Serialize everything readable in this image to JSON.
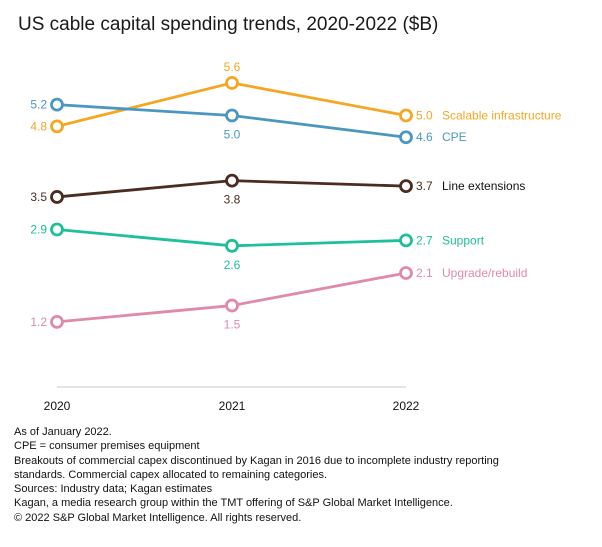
{
  "chart_data": {
    "type": "line",
    "title": "US cable capital spending trends, 2020-2022 ($B)",
    "xlabel": "",
    "ylabel": "",
    "x": [
      "2020",
      "2021",
      "2022"
    ],
    "grid": false,
    "legend": "inline-right",
    "series": [
      {
        "name": "Scalable infrastructure",
        "color": "#f5a623",
        "values": [
          4.8,
          5.6,
          5.0
        ],
        "label_pos": [
          "left",
          "above",
          "right"
        ]
      },
      {
        "name": "CPE",
        "color": "#4a97c2",
        "values": [
          5.2,
          5.0,
          4.6
        ],
        "label_pos": [
          "left",
          "below",
          "right"
        ]
      },
      {
        "name": "Line extensions",
        "color": "#4b2c20",
        "label_color": "#111111",
        "values": [
          3.5,
          3.8,
          3.7
        ],
        "label_pos": [
          "left",
          "below",
          "right"
        ]
      },
      {
        "name": "Support",
        "color": "#1dbf9c",
        "values": [
          2.9,
          2.6,
          2.7
        ],
        "label_pos": [
          "left",
          "below",
          "right"
        ]
      },
      {
        "name": "Upgrade/rebuild",
        "color": "#e08aa8",
        "values": [
          1.2,
          1.5,
          2.1
        ],
        "label_pos": [
          "left",
          "below",
          "right"
        ]
      }
    ]
  },
  "notes": [
    "As of January 2022.",
    "CPE = consumer premises equipment",
    "Breakouts of commercial capex discontinued by Kagan in 2016 due to incomplete industry reporting",
    "standards. Commercial capex allocated to remaining categories.",
    "Sources: Industry data; Kagan estimates",
    "Kagan, a media research group within the TMT offering of S&P Global Market Intelligence.",
    "© 2022 S&P Global Market Intelligence. All rights reserved."
  ]
}
